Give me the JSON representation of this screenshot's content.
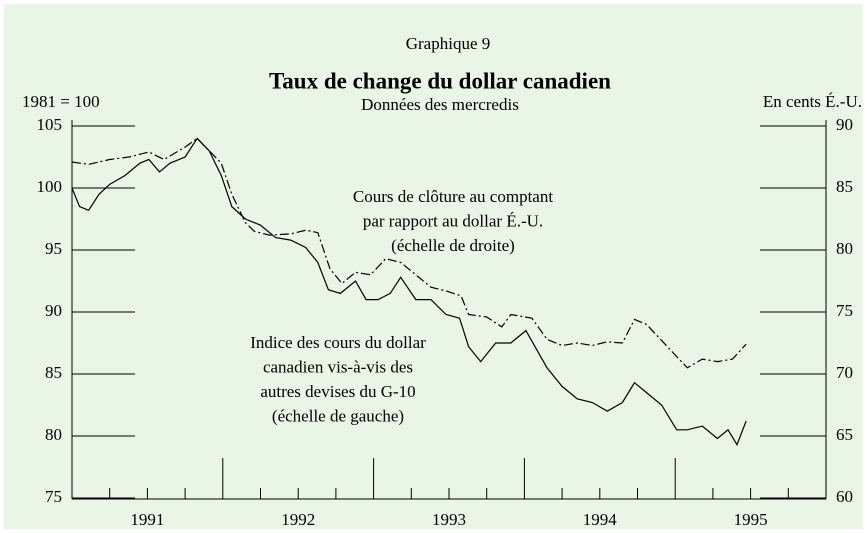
{
  "chart_data": {
    "type": "line",
    "label": "Graphique 9",
    "title": "Taux de change du dollar canadien",
    "subtitle": "Données des mercredis",
    "ylabel": "1981 = 100",
    "y2label": "En cents É.-U.",
    "annotations": [
      [
        "Cours de clôture au comptant",
        "par rapport au dollar É.-U.",
        "(échelle de droite)"
      ],
      [
        "Indice des cours du dollar",
        "canadien vis-à-vis des",
        "autres devises du G-10",
        "(échelle de gauche)"
      ]
    ],
    "xlim": [
      1991,
      1996
    ],
    "xticks": [
      {
        "value": 1991.5,
        "label": "1991"
      },
      {
        "value": 1992.5,
        "label": "1992"
      },
      {
        "value": 1993.5,
        "label": "1993"
      },
      {
        "value": 1994.5,
        "label": "1994"
      },
      {
        "value": 1995.5,
        "label": "1995"
      }
    ],
    "x_major_ticks": [
      1992,
      1993,
      1994,
      1995
    ],
    "x_minor_ticks": [
      1991.25,
      1991.75,
      1992.25,
      1992.75,
      1993.25,
      1993.75,
      1994.25,
      1994.75,
      1995.25,
      1995.75
    ],
    "ylim": [
      75,
      105
    ],
    "yticks": [
      75,
      80,
      85,
      90,
      95,
      100,
      105
    ],
    "y2lim": [
      60,
      90
    ],
    "y2ticks": [
      60,
      65,
      70,
      75,
      80,
      85,
      90
    ],
    "series": [
      {
        "color": "#000000",
        "dash": "solid",
        "x": [
          1991.0,
          1991.05,
          1991.11,
          1991.18,
          1991.25,
          1991.35,
          1991.45,
          1991.51,
          1991.58,
          1991.65,
          1991.75,
          1991.83,
          1991.91,
          1991.99,
          1992.06,
          1992.15,
          1992.25,
          1992.35,
          1992.45,
          1992.55,
          1992.63,
          1992.7,
          1992.78,
          1992.88,
          1992.95,
          1993.03,
          1993.11,
          1993.18,
          1993.28,
          1993.38,
          1993.48,
          1993.57,
          1993.63,
          1993.71,
          1993.81,
          1993.91,
          1994.01,
          1994.15,
          1994.25,
          1994.35,
          1994.45,
          1994.55,
          1994.65,
          1994.73,
          1994.81,
          1994.91,
          1995.01,
          1995.08,
          1995.18,
          1995.28,
          1995.35,
          1995.41,
          1995.47
        ],
        "values": [
          100,
          98.5,
          98.2,
          99.5,
          100.3,
          101,
          102,
          102.3,
          101.3,
          102,
          102.5,
          104,
          103,
          101,
          98.5,
          97.5,
          97,
          96,
          95.8,
          95.2,
          94,
          91.8,
          91.5,
          92.5,
          91,
          91,
          91.5,
          92.8,
          91,
          91,
          89.8,
          89.5,
          87.2,
          86,
          87.5,
          87.5,
          88.5,
          85.5,
          84,
          83,
          82.7,
          82,
          82.7,
          84.3,
          83.5,
          82.5,
          80.5,
          80.5,
          80.8,
          79.8,
          80.5,
          79.3,
          81.2
        ]
      },
      {
        "color": "#000000",
        "dash": "dashdot",
        "axis": "y2",
        "x": [
          1991.0,
          1991.11,
          1991.25,
          1991.38,
          1991.51,
          1991.61,
          1991.75,
          1991.83,
          1991.91,
          1991.99,
          1992.06,
          1992.15,
          1992.21,
          1992.31,
          1992.45,
          1992.55,
          1992.63,
          1992.71,
          1992.79,
          1992.88,
          1992.98,
          1993.08,
          1993.18,
          1993.28,
          1993.38,
          1993.48,
          1993.58,
          1993.63,
          1993.75,
          1993.85,
          1993.91,
          1994.05,
          1994.15,
          1994.25,
          1994.35,
          1994.45,
          1994.55,
          1994.65,
          1994.73,
          1994.81,
          1994.91,
          1995.01,
          1995.08,
          1995.18,
          1995.28,
          1995.38,
          1995.47
        ],
        "values": [
          87.1,
          86.9,
          87.3,
          87.5,
          87.9,
          87.3,
          88.3,
          89.0,
          88.0,
          87.0,
          84.5,
          82.2,
          81.5,
          81.2,
          81.3,
          81.6,
          81.4,
          78.5,
          77.3,
          78.2,
          78.0,
          79.3,
          79.0,
          78.0,
          77.0,
          76.7,
          76.3,
          74.8,
          74.6,
          73.8,
          74.8,
          74.5,
          72.8,
          72.3,
          72.5,
          72.3,
          72.6,
          72.5,
          74.4,
          74.0,
          72.7,
          71.4,
          70.5,
          71.2,
          71.0,
          71.2,
          72.4
        ]
      }
    ]
  }
}
